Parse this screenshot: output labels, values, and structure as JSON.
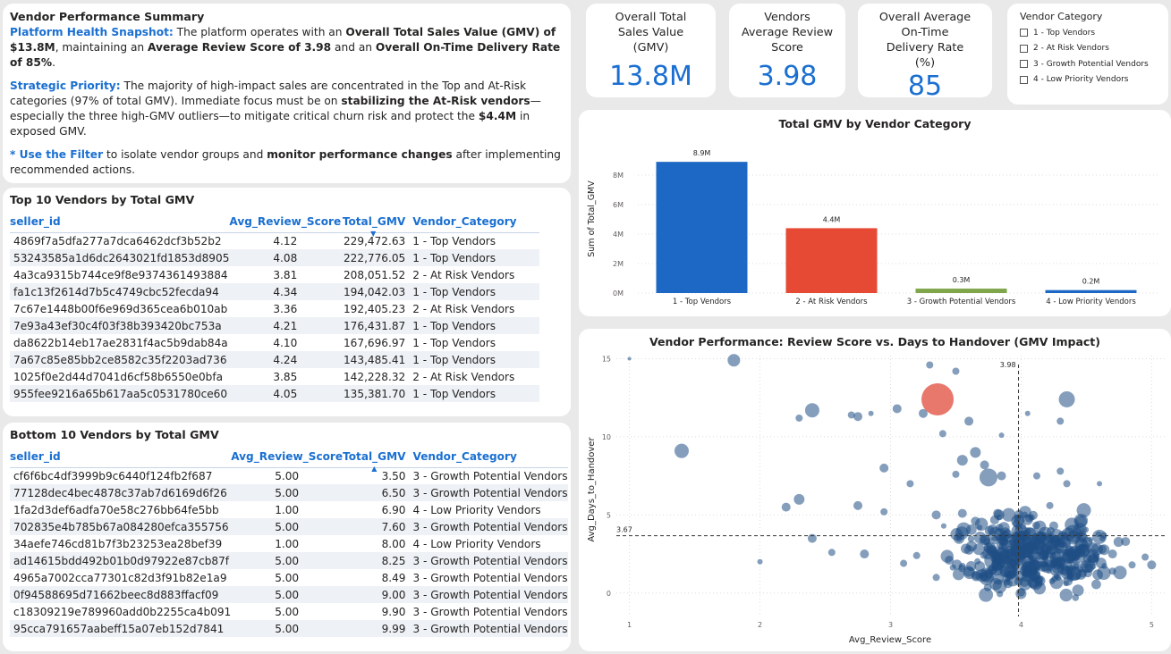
{
  "summary": {
    "title": "Vendor Performance Summary",
    "p1": {
      "head": "Platform Health Snapshot:",
      "t1": " The platform operates with an ",
      "b1": "Overall Total Sales Value (GMV) of $13.8M",
      "t2": ", maintaining an ",
      "b2": "Average Review Score of 3.98",
      "t3": " and an ",
      "b3": "Overall On-Time Delivery Rate of 85%",
      "t4": "."
    },
    "p2": {
      "head": "Strategic Priority:",
      "t1": " The majority of high-impact sales are concentrated in the Top and At-Risk categories (97% of total GMV). Immediate focus must be on ",
      "b1": "stabilizing the At-Risk vendors",
      "t2": "—especially the three high-GMV outliers—to mitigate critical churn risk and protect the ",
      "b2": "$4.4M",
      "t3": " in exposed GMV."
    },
    "p3": {
      "star": "* ",
      "head": "Use the Filter",
      "t1": " to isolate vendor groups and ",
      "b1": "monitor performance changes",
      "t2": " after implementing recommended actions."
    }
  },
  "kpis": {
    "gmv": {
      "label": "Overall Total Sales Value (GMV)",
      "value": "13.8M"
    },
    "review": {
      "label": "Vendors Average Review Score",
      "value": "3.98"
    },
    "ontime": {
      "label": "Overall Average On-Time Delivery Rate (%)",
      "value": "85"
    }
  },
  "filter": {
    "title": "Vendor Category",
    "options": [
      "1 - Top Vendors",
      "2 - At Risk Vendors",
      "3 - Growth Potential Vendors",
      "4 - Low Priority Vendors"
    ]
  },
  "top10": {
    "title": "Top 10 Vendors by Total GMV",
    "columns": [
      "seller_id",
      "Avg_Review_Score",
      "Total_GMV",
      "Vendor_Category"
    ],
    "rows": [
      [
        "4869f7a5dfa277a7dca6462dcf3b52b2",
        "4.12",
        "229,472.63",
        "1 - Top Vendors"
      ],
      [
        "53243585a1d6dc2643021fd1853d8905",
        "4.08",
        "222,776.05",
        "1 - Top Vendors"
      ],
      [
        "4a3ca9315b744ce9f8e9374361493884",
        "3.81",
        "208,051.52",
        "2 - At Risk Vendors"
      ],
      [
        "fa1c13f2614d7b5c4749cbc52fecda94",
        "4.34",
        "194,042.03",
        "1 - Top Vendors"
      ],
      [
        "7c67e1448b00f6e969d365cea6b010ab",
        "3.36",
        "192,405.23",
        "2 - At Risk Vendors"
      ],
      [
        "7e93a43ef30c4f03f38b393420bc753a",
        "4.21",
        "176,431.87",
        "1 - Top Vendors"
      ],
      [
        "da8622b14eb17ae2831f4ac5b9dab84a",
        "4.10",
        "167,696.97",
        "1 - Top Vendors"
      ],
      [
        "7a67c85e85bb2ce8582c35f2203ad736",
        "4.24",
        "143,485.41",
        "1 - Top Vendors"
      ],
      [
        "1025f0e2d44d7041d6cf58b6550e0bfa",
        "3.85",
        "142,228.32",
        "2 - At Risk Vendors"
      ],
      [
        "955fee9216a65b617aa5c0531780ce60",
        "4.05",
        "135,381.70",
        "1 - Top Vendors"
      ]
    ]
  },
  "bottom10": {
    "title": "Bottom 10 Vendors by Total GMV",
    "columns": [
      "seller_id",
      "Avg_Review_Score",
      "Total_GMV",
      "Vendor_Category"
    ],
    "rows": [
      [
        "cf6f6bc4df3999b9c6440f124fb2f687",
        "5.00",
        "3.50",
        "3 - Growth Potential Vendors"
      ],
      [
        "77128dec4bec4878c37ab7d6169d6f26",
        "5.00",
        "6.50",
        "3 - Growth Potential Vendors"
      ],
      [
        "1fa2d3def6adfa70e58c276bb64fe5bb",
        "1.00",
        "6.90",
        "4 - Low Priority Vendors"
      ],
      [
        "702835e4b785b67a084280efca355756",
        "5.00",
        "7.60",
        "3 - Growth Potential Vendors"
      ],
      [
        "34aefe746cd81b7f3b23253ea28bef39",
        "1.00",
        "8.00",
        "4 - Low Priority Vendors"
      ],
      [
        "ad14615bdd492b01b0d97922e87cb87f",
        "5.00",
        "8.25",
        "3 - Growth Potential Vendors"
      ],
      [
        "4965a7002cca77301c82d3f91b82e1a9",
        "5.00",
        "8.49",
        "3 - Growth Potential Vendors"
      ],
      [
        "0f94588695d71662beec8d883ffacf09",
        "5.00",
        "9.00",
        "3 - Growth Potential Vendors"
      ],
      [
        "c18309219e789960add0b2255ca4b091",
        "5.00",
        "9.90",
        "3 - Growth Potential Vendors"
      ],
      [
        "95cca791657aabeff15a07eb152d7841",
        "5.00",
        "9.99",
        "3 - Growth Potential Vendors"
      ]
    ]
  },
  "colors": {
    "accent": "#1a6fd1",
    "bar_top": "#1c68c4",
    "bar_risk": "#e64a35",
    "bar_growth": "#7fa64a",
    "bar_low": "#1c68c4",
    "scatter_point": "#1f4e85",
    "scatter_highlight": "#e4695b"
  },
  "chart_data": [
    {
      "type": "bar",
      "title": "Total GMV by Vendor Category",
      "categories": [
        "1 - Top Vendors",
        "2 - At Risk Vendors",
        "3 - Growth Potential Vendors",
        "4 - Low Priority Vendors"
      ],
      "values": [
        8.9,
        4.4,
        0.3,
        0.2
      ],
      "data_labels": [
        "8.9M",
        "4.4M",
        "0.3M",
        "0.2M"
      ],
      "ylabel": "Sum of Total_GMV",
      "yticks": [
        "0M",
        "2M",
        "4M",
        "6M",
        "8M"
      ],
      "ylim": [
        0,
        10
      ],
      "grid": true
    },
    {
      "type": "scatter",
      "title": "Vendor Performance: Review Score vs. Days to Handover (GMV Impact)",
      "xlabel": "Avg_Review_Score",
      "ylabel": "Avg_Days_to_Handover",
      "xlim": [
        0.9,
        5.1
      ],
      "ylim": [
        -1.5,
        15.2
      ],
      "xticks": [
        "1",
        "2",
        "3",
        "4",
        "5"
      ],
      "yticks": [
        "0",
        "5",
        "10",
        "15"
      ],
      "ref_x": 3.98,
      "ref_x_label": "3.98",
      "ref_y": 3.67,
      "ref_y_label": "3.67",
      "highlight": {
        "x": 3.36,
        "y": 12.4,
        "size": 18
      },
      "points": [
        [
          1.0,
          15.0,
          2
        ],
        [
          1.8,
          14.9,
          7
        ],
        [
          2.75,
          11.3,
          5
        ],
        [
          2.7,
          11.4,
          4
        ],
        [
          2.85,
          11.5,
          3
        ],
        [
          3.05,
          11.8,
          5
        ],
        [
          2.3,
          11.2,
          4
        ],
        [
          3.3,
          14.6,
          4
        ],
        [
          3.5,
          14.2,
          4
        ],
        [
          2.4,
          11.7,
          8
        ],
        [
          3.6,
          11.0,
          5
        ],
        [
          3.25,
          11.5,
          5
        ],
        [
          3.4,
          10.2,
          4
        ],
        [
          3.55,
          8.5,
          6
        ],
        [
          3.72,
          8.2,
          5
        ],
        [
          4.35,
          12.4,
          9
        ],
        [
          4.3,
          11.0,
          4
        ],
        [
          4.05,
          11.5,
          3
        ],
        [
          3.85,
          10.1,
          3
        ],
        [
          1.4,
          9.1,
          8
        ],
        [
          3.65,
          9.0,
          6
        ],
        [
          2.95,
          8.0,
          5
        ],
        [
          3.5,
          7.6,
          4
        ],
        [
          3.75,
          7.4,
          10
        ],
        [
          3.15,
          7.0,
          4
        ],
        [
          3.85,
          7.5,
          5
        ],
        [
          4.12,
          7.5,
          4
        ],
        [
          4.3,
          7.8,
          4
        ],
        [
          4.35,
          7.0,
          4
        ],
        [
          4.6,
          7.0,
          3
        ],
        [
          4.48,
          5.3,
          8
        ],
        [
          4.22,
          5.6,
          4
        ],
        [
          2.3,
          6.0,
          6
        ],
        [
          2.2,
          5.5,
          5
        ],
        [
          2.75,
          5.6,
          5
        ],
        [
          2.95,
          5.2,
          4
        ],
        [
          3.35,
          5.0,
          5
        ],
        [
          3.55,
          5.1,
          5
        ],
        [
          3.65,
          4.6,
          5
        ],
        [
          3.82,
          5.1,
          5
        ],
        [
          4.05,
          4.7,
          6
        ],
        [
          4.25,
          4.3,
          5
        ],
        [
          4.4,
          3.8,
          10
        ],
        [
          4.6,
          3.6,
          8
        ],
        [
          4.8,
          3.3,
          5
        ],
        [
          4.95,
          2.3,
          4
        ],
        [
          5.0,
          1.8,
          5
        ],
        [
          4.85,
          1.8,
          4
        ],
        [
          4.7,
          1.4,
          4
        ],
        [
          2.4,
          3.5,
          5
        ],
        [
          2.55,
          2.6,
          4
        ],
        [
          2.8,
          2.5,
          5
        ],
        [
          3.2,
          2.4,
          4
        ],
        [
          3.45,
          2.1,
          5
        ],
        [
          3.8,
          2.1,
          12
        ],
        [
          3.62,
          3.0,
          6
        ],
        [
          3.72,
          3.4,
          6
        ],
        [
          3.9,
          3.0,
          8
        ],
        [
          4.05,
          2.9,
          7
        ],
        [
          4.2,
          2.8,
          6
        ],
        [
          4.1,
          1.2,
          7
        ],
        [
          4.35,
          1.4,
          6
        ],
        [
          4.52,
          1.6,
          5
        ],
        [
          3.9,
          0.6,
          5
        ],
        [
          3.75,
          1.2,
          5
        ],
        [
          3.55,
          1.7,
          4
        ],
        [
          3.35,
          1.0,
          4
        ],
        [
          3.1,
          1.9,
          4
        ],
        [
          4.0,
          4.0,
          7
        ],
        [
          3.95,
          1.9,
          6
        ],
        [
          4.45,
          2.6,
          6
        ],
        [
          4.55,
          2.2,
          5
        ],
        [
          4.62,
          2.8,
          5
        ],
        [
          4.3,
          2.0,
          6
        ],
        [
          4.15,
          3.5,
          6
        ],
        [
          3.85,
          3.5,
          6
        ],
        [
          4.7,
          2.5,
          5
        ],
        [
          4.0,
          2.3,
          6
        ],
        [
          3.98,
          3.3,
          6
        ],
        [
          3.85,
          2.7,
          5
        ]
      ]
    }
  ]
}
